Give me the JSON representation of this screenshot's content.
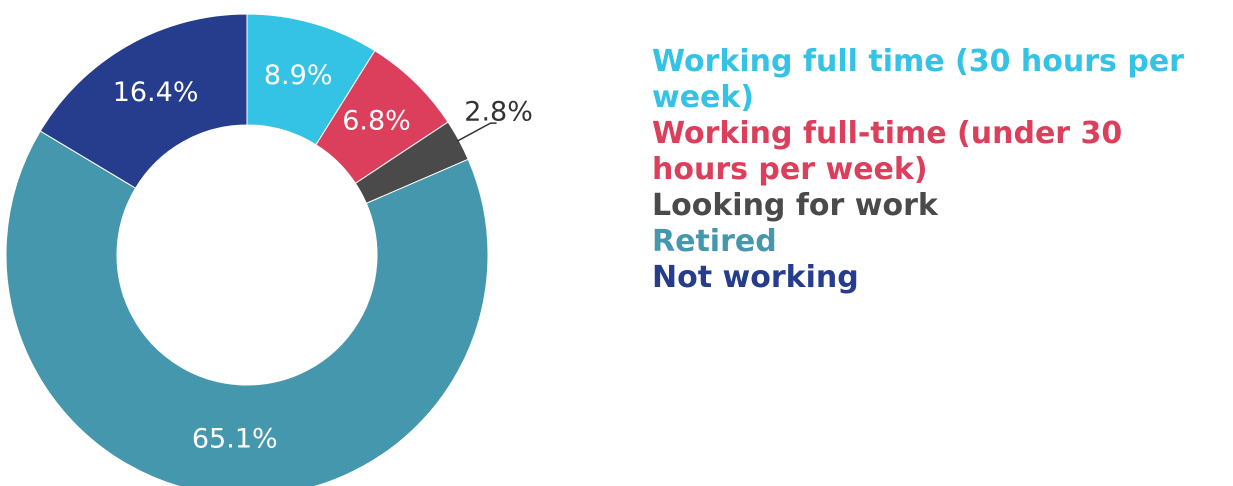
{
  "chart_data": {
    "type": "pie",
    "donut": true,
    "categories": [
      "Working full time (30 hours per week)",
      "Working full-time (under 30 hours per week)",
      "Looking for work",
      "Retired",
      "Not working"
    ],
    "values": [
      8.9,
      6.8,
      2.8,
      65.1,
      16.4
    ],
    "value_labels": [
      "8.9%",
      "6.8%",
      "2.8%",
      "65.1%",
      "16.4%"
    ],
    "colors": [
      "#35c3e5",
      "#db3f5b",
      "#4a4a4a",
      "#4597ad",
      "#263c8d"
    ],
    "legend": "right"
  }
}
